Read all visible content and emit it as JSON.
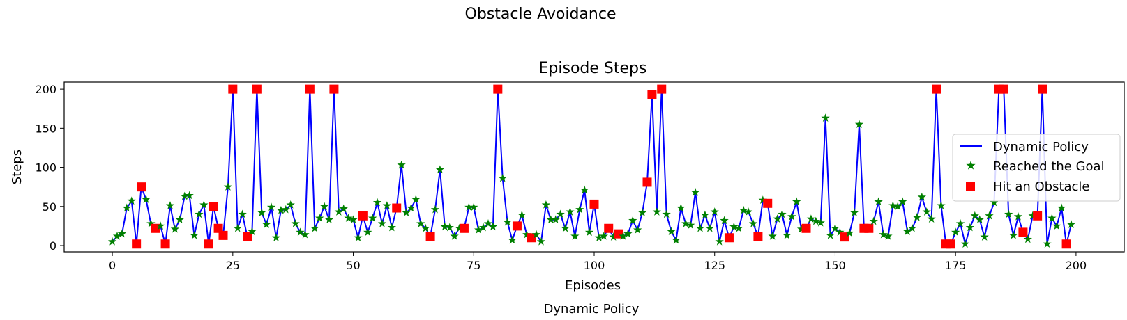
{
  "figure": {
    "suptitle": "Obstacle Avoidance",
    "footer": "Dynamic Policy"
  },
  "chart_data": {
    "type": "line",
    "title": "Episode Steps",
    "xlabel": "Episodes",
    "ylabel": "Steps",
    "xlim": [
      -10,
      210
    ],
    "ylim": [
      -8,
      209
    ],
    "xticks": [
      0,
      25,
      50,
      75,
      100,
      125,
      150,
      175,
      200
    ],
    "yticks": [
      0,
      50,
      100,
      150,
      200
    ],
    "grid": false,
    "legend": "center-right",
    "series": [
      {
        "name": "Dynamic Policy",
        "kind": "line",
        "color": "#0000ff",
        "values": [
          5,
          12,
          15,
          48,
          57,
          2,
          75,
          59,
          28,
          22,
          25,
          2,
          51,
          21,
          33,
          63,
          64,
          13,
          40,
          52,
          2,
          50,
          22,
          13,
          75,
          200,
          22,
          40,
          12,
          18,
          200,
          42,
          27,
          49,
          10,
          45,
          46,
          52,
          28,
          17,
          14,
          200,
          22,
          35,
          50,
          33,
          200,
          43,
          47,
          35,
          33,
          10,
          38,
          17,
          35,
          55,
          28,
          51,
          23,
          48,
          103,
          42,
          48,
          59,
          28,
          22,
          12,
          46,
          97,
          24,
          23,
          12,
          22,
          22,
          49,
          49,
          20,
          23,
          28,
          24,
          200,
          86,
          30,
          7,
          25,
          39,
          14,
          10,
          14,
          5,
          52,
          33,
          33,
          40,
          22,
          43,
          12,
          46,
          71,
          17,
          53,
          10,
          12,
          22,
          11,
          15,
          12,
          15,
          32,
          20,
          42,
          81,
          193,
          43,
          200,
          40,
          18,
          7,
          48,
          28,
          26,
          68,
          22,
          39,
          22,
          43,
          5,
          32,
          10,
          24,
          22,
          45,
          43,
          28,
          12,
          58,
          54,
          12,
          34,
          40,
          13,
          37,
          56,
          21,
          22,
          34,
          31,
          29,
          163,
          13,
          22,
          17,
          11,
          16,
          42,
          155,
          22,
          22,
          31,
          56,
          14,
          12,
          51,
          50,
          56,
          18,
          22,
          36,
          62,
          43,
          34,
          200,
          51,
          2,
          2,
          17,
          28,
          2,
          23,
          38,
          33,
          11,
          38,
          55,
          200,
          200,
          40,
          13,
          37,
          17,
          8,
          38,
          38,
          200,
          2,
          35,
          25,
          48,
          2,
          27
        ]
      },
      {
        "name": "Reached the Goal",
        "kind": "scatter",
        "marker": "star",
        "color": "#008000"
      },
      {
        "name": "Hit an Obstacle",
        "kind": "scatter",
        "marker": "square",
        "color": "#ff0000",
        "x": [
          5,
          6,
          9,
          11,
          20,
          21,
          22,
          23,
          25,
          28,
          30,
          41,
          46,
          52,
          59,
          66,
          73,
          80,
          84,
          87,
          100,
          103,
          105,
          111,
          112,
          114,
          128,
          134,
          136,
          144,
          152,
          156,
          157,
          171,
          173,
          174,
          184,
          185,
          189,
          192,
          193,
          198
        ]
      }
    ]
  }
}
